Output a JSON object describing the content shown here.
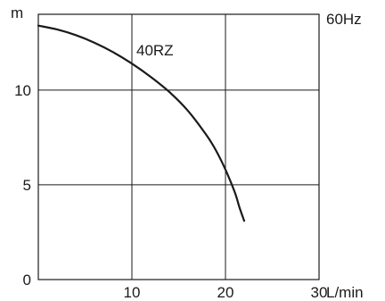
{
  "chart_data": {
    "type": "line",
    "xlabel": "L/min",
    "ylabel": "m",
    "annotation": "60Hz",
    "xlim": [
      0,
      30
    ],
    "ylim": [
      0,
      14
    ],
    "x_ticks": [
      0,
      10,
      20,
      30
    ],
    "y_ticks": [
      0,
      5,
      10
    ],
    "x_tick_labels": [
      "10",
      "20",
      "30"
    ],
    "y_tick_labels": [
      "0",
      "5",
      "10"
    ],
    "grid": true,
    "series": [
      {
        "name": "40RZ",
        "x": [
          0,
          2,
          4,
          6,
          8,
          10,
          12,
          14,
          16,
          18,
          19,
          20,
          21,
          21.5,
          22
        ],
        "y": [
          13.4,
          13.2,
          12.9,
          12.5,
          12.0,
          11.4,
          10.7,
          9.9,
          8.9,
          7.6,
          6.8,
          5.8,
          4.6,
          3.8,
          3.1
        ]
      }
    ]
  }
}
